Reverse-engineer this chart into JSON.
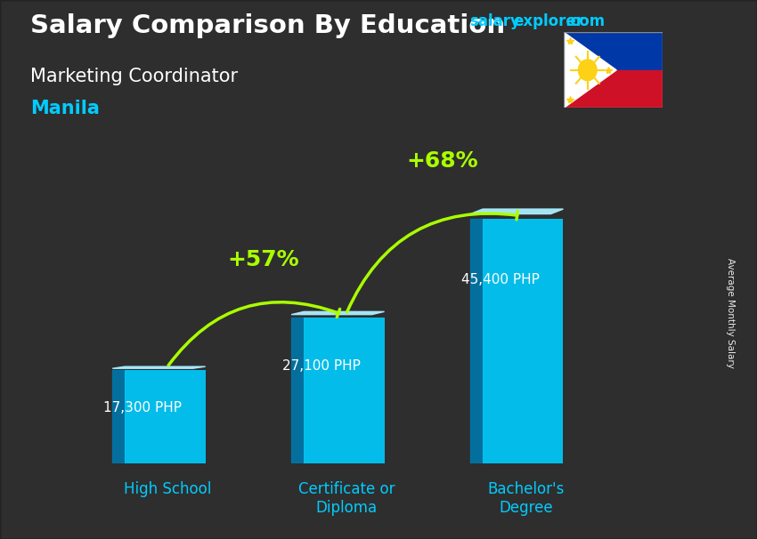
{
  "title_main": "Salary Comparison By Education",
  "title_sub": "Marketing Coordinator",
  "title_city": "Manila",
  "categories": [
    "High School",
    "Certificate or\nDiploma",
    "Bachelor's\nDegree"
  ],
  "values": [
    17300,
    27100,
    45400
  ],
  "value_labels": [
    "17,300 PHP",
    "27,100 PHP",
    "45,400 PHP"
  ],
  "pct_labels": [
    "+57%",
    "+68%"
  ],
  "bar_face_color": "#00ccff",
  "bar_left_color": "#0077aa",
  "bar_top_color": "#aaeeff",
  "arrow_color": "#aaff00",
  "ylabel": "Average Monthly Salary",
  "text_color_white": "#ffffff",
  "text_color_cyan": "#00ccff",
  "text_color_green": "#aaff00",
  "city_color": "#00ccff",
  "brand_salary_color": "#00ccff",
  "brand_com_color": "#00ccff",
  "figsize": [
    8.5,
    6.06
  ],
  "dpi": 100,
  "bg_color": "#555555",
  "overlay_alpha": 0.45
}
